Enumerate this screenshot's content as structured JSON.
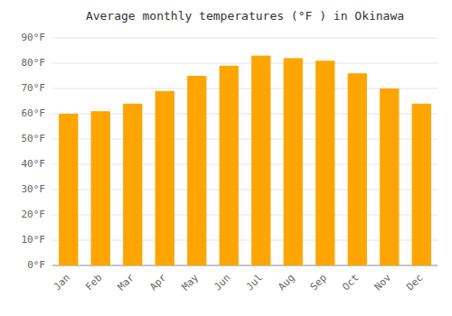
{
  "chart_data": {
    "type": "bar",
    "title": "Average monthly temperatures (°F ) in Okinawa",
    "categories": [
      "Jan",
      "Feb",
      "Mar",
      "Apr",
      "May",
      "Jun",
      "Jul",
      "Aug",
      "Sep",
      "Oct",
      "Nov",
      "Dec"
    ],
    "values": [
      60,
      61,
      64,
      69,
      75,
      79,
      83,
      82,
      81,
      76,
      70,
      64
    ],
    "color": "#FFA500",
    "ylim": [
      0,
      90
    ],
    "yticks": [
      {
        "value": 0,
        "label": "0°F"
      },
      {
        "value": 10,
        "label": "10°F"
      },
      {
        "value": 20,
        "label": "20°F"
      },
      {
        "value": 30,
        "label": "30°F"
      },
      {
        "value": 40,
        "label": "40°F"
      },
      {
        "value": 50,
        "label": "50°F"
      },
      {
        "value": 60,
        "label": "60°F"
      },
      {
        "value": 70,
        "label": "70°F"
      },
      {
        "value": 80,
        "label": "80°F"
      },
      {
        "value": 90,
        "label": "90°F"
      }
    ],
    "grid": true
  }
}
